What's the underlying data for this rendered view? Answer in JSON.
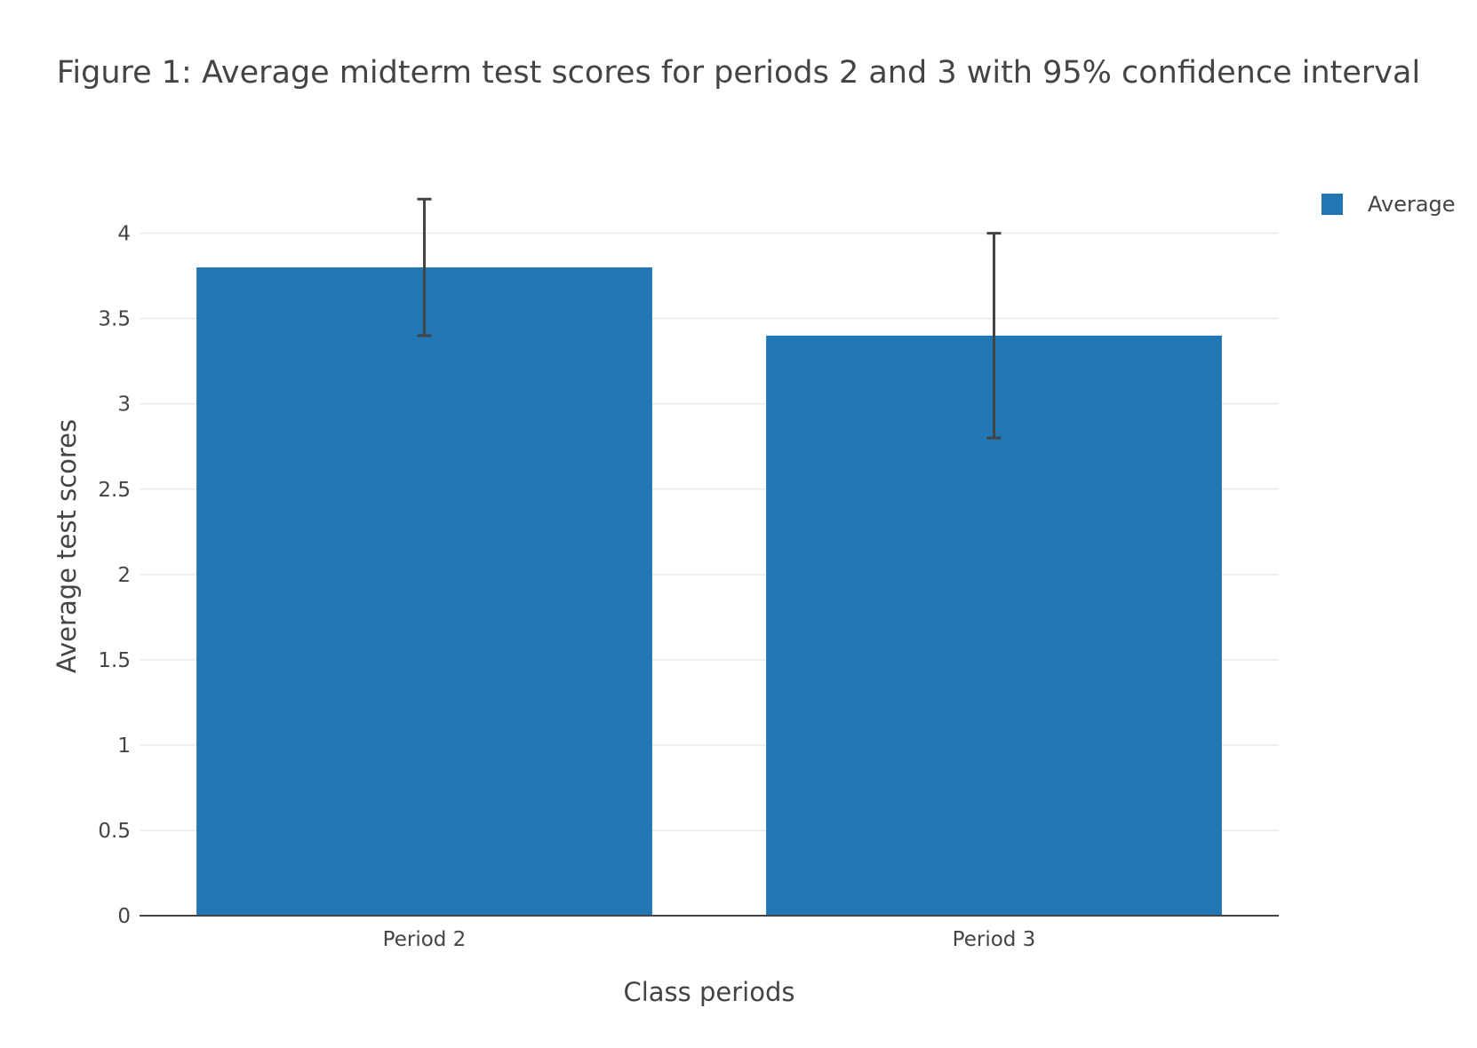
{
  "chart_data": {
    "type": "bar",
    "title": "Figure 1: Average midterm test scores for periods 2 and 3 with 95% confidence interval",
    "xlabel": "Class periods",
    "ylabel": "Average test scores",
    "categories": [
      "Period 2",
      "Period 3"
    ],
    "series": [
      {
        "name": "Average",
        "values": [
          3.8,
          3.4
        ],
        "error_low": [
          3.4,
          2.8
        ],
        "error_high": [
          4.2,
          4.0
        ],
        "color": "#2077b4"
      }
    ],
    "ylim": [
      0,
      4.3
    ],
    "yticks": [
      0,
      0.5,
      1,
      1.5,
      2,
      2.5,
      3,
      3.5,
      4
    ],
    "grid": true,
    "legend_position": "top-right",
    "error_bar_color": "#444444",
    "grid_color": "#e8e8e8"
  }
}
